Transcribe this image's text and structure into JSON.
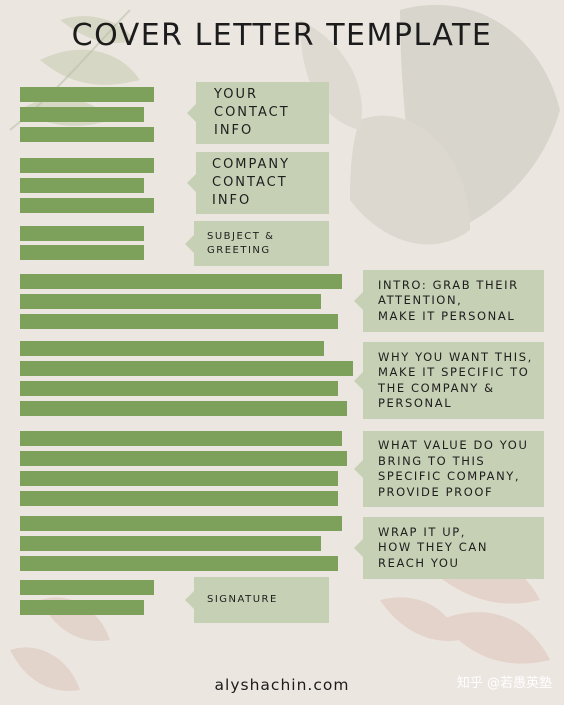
{
  "title": "COVER LETTER TEMPLATE",
  "sections": [
    {
      "label": "YOUR\nCONTACT\nINFO"
    },
    {
      "label": "COMPANY\nCONTACT\nINFO"
    },
    {
      "label": "SUBJECT &\nGREETING"
    },
    {
      "label": "INTRO: GRAB THEIR\nATTENTION,\nMAKE IT PERSONAL"
    },
    {
      "label": "WHY YOU WANT THIS,\nMAKE IT SPECIFIC TO\nTHE COMPANY &\nPERSONAL"
    },
    {
      "label": "WHAT VALUE DO YOU\nBRING TO THIS\nSPECIFIC COMPANY,\nPROVIDE PROOF"
    },
    {
      "label": "WRAP IT UP,\nHOW THEY CAN\nREACH YOU"
    },
    {
      "label": "SIGNATURE"
    }
  ],
  "footer": "alyshachin.com",
  "watermark": "知乎 @若愚英塾",
  "colors": {
    "background": "#ece6e1",
    "bar": "#7da05a",
    "label_box": "#c6d0b4",
    "text": "#1c1c1c"
  }
}
